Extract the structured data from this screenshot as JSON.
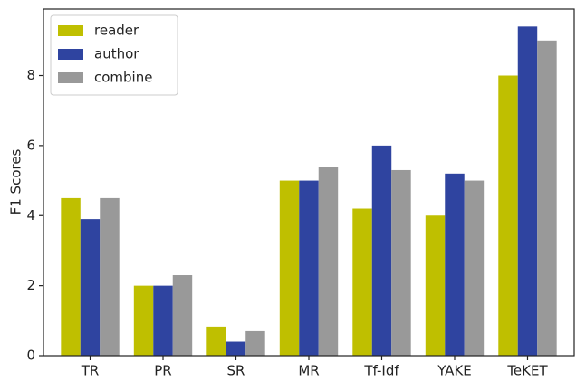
{
  "chart_data": {
    "type": "bar",
    "y_label": "F1 Scores",
    "categories": [
      "TR",
      "PR",
      "SR",
      "MR",
      "Tf-Idf",
      "YAKE",
      "TeKET"
    ],
    "series": [
      {
        "name": "reader",
        "color": "#bfbf00",
        "values": [
          4.5,
          2.0,
          0.83,
          5.0,
          4.2,
          4.0,
          8.0
        ]
      },
      {
        "name": "author",
        "color": "#2f44a0",
        "values": [
          3.9,
          2.0,
          0.4,
          5.0,
          6.0,
          5.2,
          9.4
        ]
      },
      {
        "name": "combine",
        "color": "#999999",
        "values": [
          4.5,
          2.3,
          0.7,
          5.4,
          5.3,
          5.0,
          9.0
        ]
      }
    ],
    "ylim": [
      0,
      9.9
    ],
    "yticks": [
      0,
      2,
      4,
      6,
      8
    ],
    "grid": false,
    "legend": "upper left"
  }
}
